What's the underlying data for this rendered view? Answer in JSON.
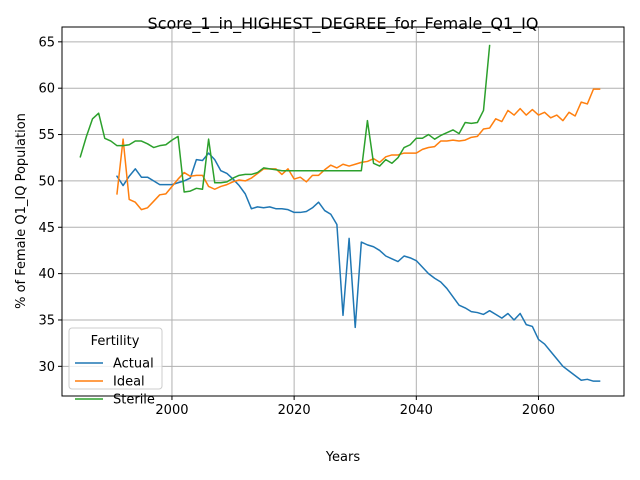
{
  "chart_data": {
    "type": "line",
    "title": "Score_1_in_HIGHEST_DEGREE_for_Female_Q1_IQ",
    "xlabel": "Years",
    "ylabel": "% of Female Q1_IQ Population",
    "xlim": [
      1982,
      2074
    ],
    "ylim": [
      26.8,
      66.6
    ],
    "xticks": [
      2000,
      2020,
      2040,
      2060
    ],
    "yticks": [
      30,
      35,
      40,
      45,
      50,
      55,
      60,
      65
    ],
    "grid": true,
    "legend": {
      "title": "Fertility",
      "placement": "lower-left"
    },
    "series": [
      {
        "name": "Actual",
        "color": "#1f77b4",
        "points": [
          [
            1991,
            50.5
          ],
          [
            1992,
            49.5
          ],
          [
            1993,
            50.5
          ],
          [
            1994,
            51.3
          ],
          [
            1995,
            50.4
          ],
          [
            1996,
            50.4
          ],
          [
            1997,
            50
          ],
          [
            1998,
            49.6
          ],
          [
            1999,
            49.6
          ],
          [
            2000,
            49.6
          ],
          [
            2001,
            49.8
          ],
          [
            2002,
            50
          ],
          [
            2003,
            50.3
          ],
          [
            2004,
            52.3
          ],
          [
            2005,
            52.2
          ],
          [
            2006,
            53
          ],
          [
            2007,
            52.3
          ],
          [
            2008,
            51.1
          ],
          [
            2009,
            50.8
          ],
          [
            2010,
            50.2
          ],
          [
            2011,
            49.5
          ],
          [
            2012,
            48.6
          ],
          [
            2013,
            47
          ],
          [
            2014,
            47.2
          ],
          [
            2015,
            47.1
          ],
          [
            2016,
            47.2
          ],
          [
            2017,
            47
          ],
          [
            2018,
            47
          ],
          [
            2019,
            46.9
          ],
          [
            2020,
            46.6
          ],
          [
            2021,
            46.6
          ],
          [
            2022,
            46.7
          ],
          [
            2023,
            47.1
          ],
          [
            2024,
            47.7
          ],
          [
            2025,
            46.8
          ],
          [
            2026,
            46.4
          ],
          [
            2027,
            45.3
          ],
          [
            2028,
            35.5
          ],
          [
            2029,
            43.8
          ],
          [
            2030,
            34.2
          ],
          [
            2031,
            43.4
          ],
          [
            2032,
            43.1
          ],
          [
            2033,
            42.9
          ],
          [
            2034,
            42.5
          ],
          [
            2035,
            41.9
          ],
          [
            2036,
            41.6
          ],
          [
            2037,
            41.3
          ],
          [
            2038,
            41.9
          ],
          [
            2039,
            41.7
          ],
          [
            2040,
            41.4
          ],
          [
            2041,
            40.7
          ],
          [
            2042,
            40
          ],
          [
            2043,
            39.5
          ],
          [
            2044,
            39.1
          ],
          [
            2045,
            38.4
          ],
          [
            2046,
            37.5
          ],
          [
            2047,
            36.6
          ],
          [
            2048,
            36.3
          ],
          [
            2049,
            35.9
          ],
          [
            2050,
            35.8
          ],
          [
            2051,
            35.6
          ],
          [
            2052,
            36
          ],
          [
            2053,
            35.6
          ],
          [
            2054,
            35.2
          ],
          [
            2055,
            35.7
          ],
          [
            2056,
            35
          ],
          [
            2057,
            35.7
          ],
          [
            2058,
            34.5
          ],
          [
            2059,
            34.3
          ],
          [
            2060,
            32.9
          ],
          [
            2061,
            32.4
          ],
          [
            2062,
            31.6
          ],
          [
            2063,
            30.8
          ],
          [
            2064,
            30
          ],
          [
            2065,
            29.5
          ],
          [
            2066,
            29
          ],
          [
            2067,
            28.5
          ],
          [
            2068,
            28.6
          ],
          [
            2069,
            28.4
          ],
          [
            2070,
            28.4
          ]
        ]
      },
      {
        "name": "Ideal",
        "color": "#ff7f0e",
        "points": [
          [
            1991,
            48.6
          ],
          [
            1992,
            54.5
          ],
          [
            1993,
            48
          ],
          [
            1994,
            47.7
          ],
          [
            1995,
            46.9
          ],
          [
            1996,
            47.1
          ],
          [
            1997,
            47.8
          ],
          [
            1998,
            48.5
          ],
          [
            1999,
            48.6
          ],
          [
            2000,
            49.4
          ],
          [
            2001,
            50.2
          ],
          [
            2002,
            50.9
          ],
          [
            2003,
            50.5
          ],
          [
            2004,
            50.6
          ],
          [
            2005,
            50.6
          ],
          [
            2006,
            49.4
          ],
          [
            2007,
            49.1
          ],
          [
            2008,
            49.4
          ],
          [
            2009,
            49.6
          ],
          [
            2010,
            49.9
          ],
          [
            2011,
            50.1
          ],
          [
            2012,
            50
          ],
          [
            2013,
            50.3
          ],
          [
            2014,
            50.8
          ],
          [
            2015,
            51.3
          ],
          [
            2016,
            51.3
          ],
          [
            2017,
            51.3
          ],
          [
            2018,
            50.7
          ],
          [
            2019,
            51.3
          ],
          [
            2020,
            50.2
          ],
          [
            2021,
            50.4
          ],
          [
            2022,
            49.9
          ],
          [
            2023,
            50.6
          ],
          [
            2024,
            50.6
          ],
          [
            2025,
            51.2
          ],
          [
            2026,
            51.7
          ],
          [
            2027,
            51.4
          ],
          [
            2028,
            51.8
          ],
          [
            2029,
            51.6
          ],
          [
            2030,
            51.8
          ],
          [
            2031,
            52
          ],
          [
            2032,
            52.1
          ],
          [
            2033,
            52.4
          ],
          [
            2034,
            52
          ],
          [
            2035,
            52.6
          ],
          [
            2036,
            52.8
          ],
          [
            2037,
            52.8
          ],
          [
            2038,
            53
          ],
          [
            2039,
            53
          ],
          [
            2040,
            53
          ],
          [
            2041,
            53.4
          ],
          [
            2042,
            53.6
          ],
          [
            2043,
            53.7
          ],
          [
            2044,
            54.3
          ],
          [
            2045,
            54.3
          ],
          [
            2046,
            54.4
          ],
          [
            2047,
            54.3
          ],
          [
            2048,
            54.4
          ],
          [
            2049,
            54.7
          ],
          [
            2050,
            54.8
          ],
          [
            2051,
            55.6
          ],
          [
            2052,
            55.7
          ],
          [
            2053,
            56.7
          ],
          [
            2054,
            56.4
          ],
          [
            2055,
            57.6
          ],
          [
            2056,
            57.1
          ],
          [
            2057,
            57.8
          ],
          [
            2058,
            57.1
          ],
          [
            2059,
            57.7
          ],
          [
            2060,
            57.1
          ],
          [
            2061,
            57.4
          ],
          [
            2062,
            56.8
          ],
          [
            2063,
            57.1
          ],
          [
            2064,
            56.5
          ],
          [
            2065,
            57.4
          ],
          [
            2066,
            57
          ],
          [
            2067,
            58.5
          ],
          [
            2068,
            58.3
          ],
          [
            2069,
            59.9
          ],
          [
            2070,
            59.9
          ]
        ]
      },
      {
        "name": "Sterile",
        "color": "#2ca02c",
        "points": [
          [
            1985,
            52.6
          ],
          [
            1986,
            54.8
          ],
          [
            1987,
            56.7
          ],
          [
            1988,
            57.3
          ],
          [
            1989,
            54.6
          ],
          [
            1990,
            54.3
          ],
          [
            1991,
            53.8
          ],
          [
            1992,
            53.8
          ],
          [
            1993,
            53.9
          ],
          [
            1994,
            54.3
          ],
          [
            1995,
            54.3
          ],
          [
            1996,
            54
          ],
          [
            1997,
            53.6
          ],
          [
            1998,
            53.8
          ],
          [
            1999,
            53.9
          ],
          [
            2000,
            54.4
          ],
          [
            2001,
            54.8
          ],
          [
            2002,
            48.8
          ],
          [
            2003,
            48.9
          ],
          [
            2004,
            49.2
          ],
          [
            2005,
            49.1
          ],
          [
            2006,
            54.5
          ],
          [
            2007,
            49.8
          ],
          [
            2008,
            49.8
          ],
          [
            2009,
            49.9
          ],
          [
            2010,
            50.3
          ],
          [
            2011,
            50.6
          ],
          [
            2012,
            50.7
          ],
          [
            2013,
            50.7
          ],
          [
            2014,
            50.9
          ],
          [
            2015,
            51.4
          ],
          [
            2016,
            51.3
          ],
          [
            2017,
            51.2
          ],
          [
            2018,
            51.1
          ],
          [
            2019,
            51.1
          ],
          [
            2020,
            51.1
          ],
          [
            2021,
            51.1
          ],
          [
            2022,
            51.1
          ],
          [
            2023,
            51.1
          ],
          [
            2024,
            51.1
          ],
          [
            2025,
            51.1
          ],
          [
            2026,
            51.1
          ],
          [
            2027,
            51.1
          ],
          [
            2028,
            51.1
          ],
          [
            2029,
            51.1
          ],
          [
            2030,
            51.1
          ],
          [
            2031,
            51.1
          ],
          [
            2032,
            56.5
          ],
          [
            2033,
            51.9
          ],
          [
            2034,
            51.6
          ],
          [
            2035,
            52.3
          ],
          [
            2036,
            51.9
          ],
          [
            2037,
            52.5
          ],
          [
            2038,
            53.6
          ],
          [
            2039,
            53.9
          ],
          [
            2040,
            54.6
          ],
          [
            2041,
            54.6
          ],
          [
            2042,
            55
          ],
          [
            2043,
            54.5
          ],
          [
            2044,
            54.9
          ],
          [
            2045,
            55.2
          ],
          [
            2046,
            55.5
          ],
          [
            2047,
            55.1
          ],
          [
            2048,
            56.3
          ],
          [
            2049,
            56.2
          ],
          [
            2050,
            56.3
          ],
          [
            2051,
            57.6
          ],
          [
            2052,
            64.6
          ]
        ]
      }
    ]
  }
}
